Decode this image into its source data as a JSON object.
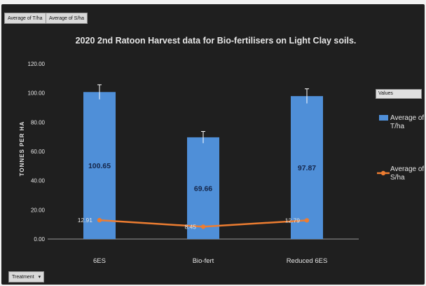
{
  "pivot": {
    "value_fields": [
      "Average of T/ha",
      "Average of S/ha"
    ],
    "axis_field": "Treatment",
    "legend_title": "Values",
    "dropdown_glyph": "▾"
  },
  "chart_data": {
    "type": "bar",
    "title": "2020 2nd Ratoon Harvest data for Bio-fertilisers on Light Clay soils.",
    "xlabel": "",
    "ylabel": "TONNES PER HA",
    "categories": [
      "6ES",
      "Bio-fert",
      "Reduced 6ES"
    ],
    "ylim": [
      0,
      120
    ],
    "y_ticks": [
      "0.00",
      "20.00",
      "40.00",
      "60.00",
      "80.00",
      "100.00",
      "120.00"
    ],
    "series": [
      {
        "name": "Average of T/ha",
        "kind": "bar",
        "values": [
          100.65,
          69.66,
          97.87
        ],
        "labels": [
          "100.65",
          "69.66",
          "97.87"
        ],
        "error": [
          5,
          4,
          5
        ],
        "color": "#4f8fd8"
      },
      {
        "name": "Average of S/ha",
        "kind": "line",
        "values": [
          12.91,
          8.45,
          12.79
        ],
        "labels": [
          "12.91",
          "8.45",
          "12.79"
        ],
        "color": "#ed7d31"
      }
    ],
    "grid": false,
    "legend": "right",
    "colors": {
      "background": "#1f1f1f",
      "text": "#e6e6e6",
      "axis": "#9a9a9a"
    }
  }
}
